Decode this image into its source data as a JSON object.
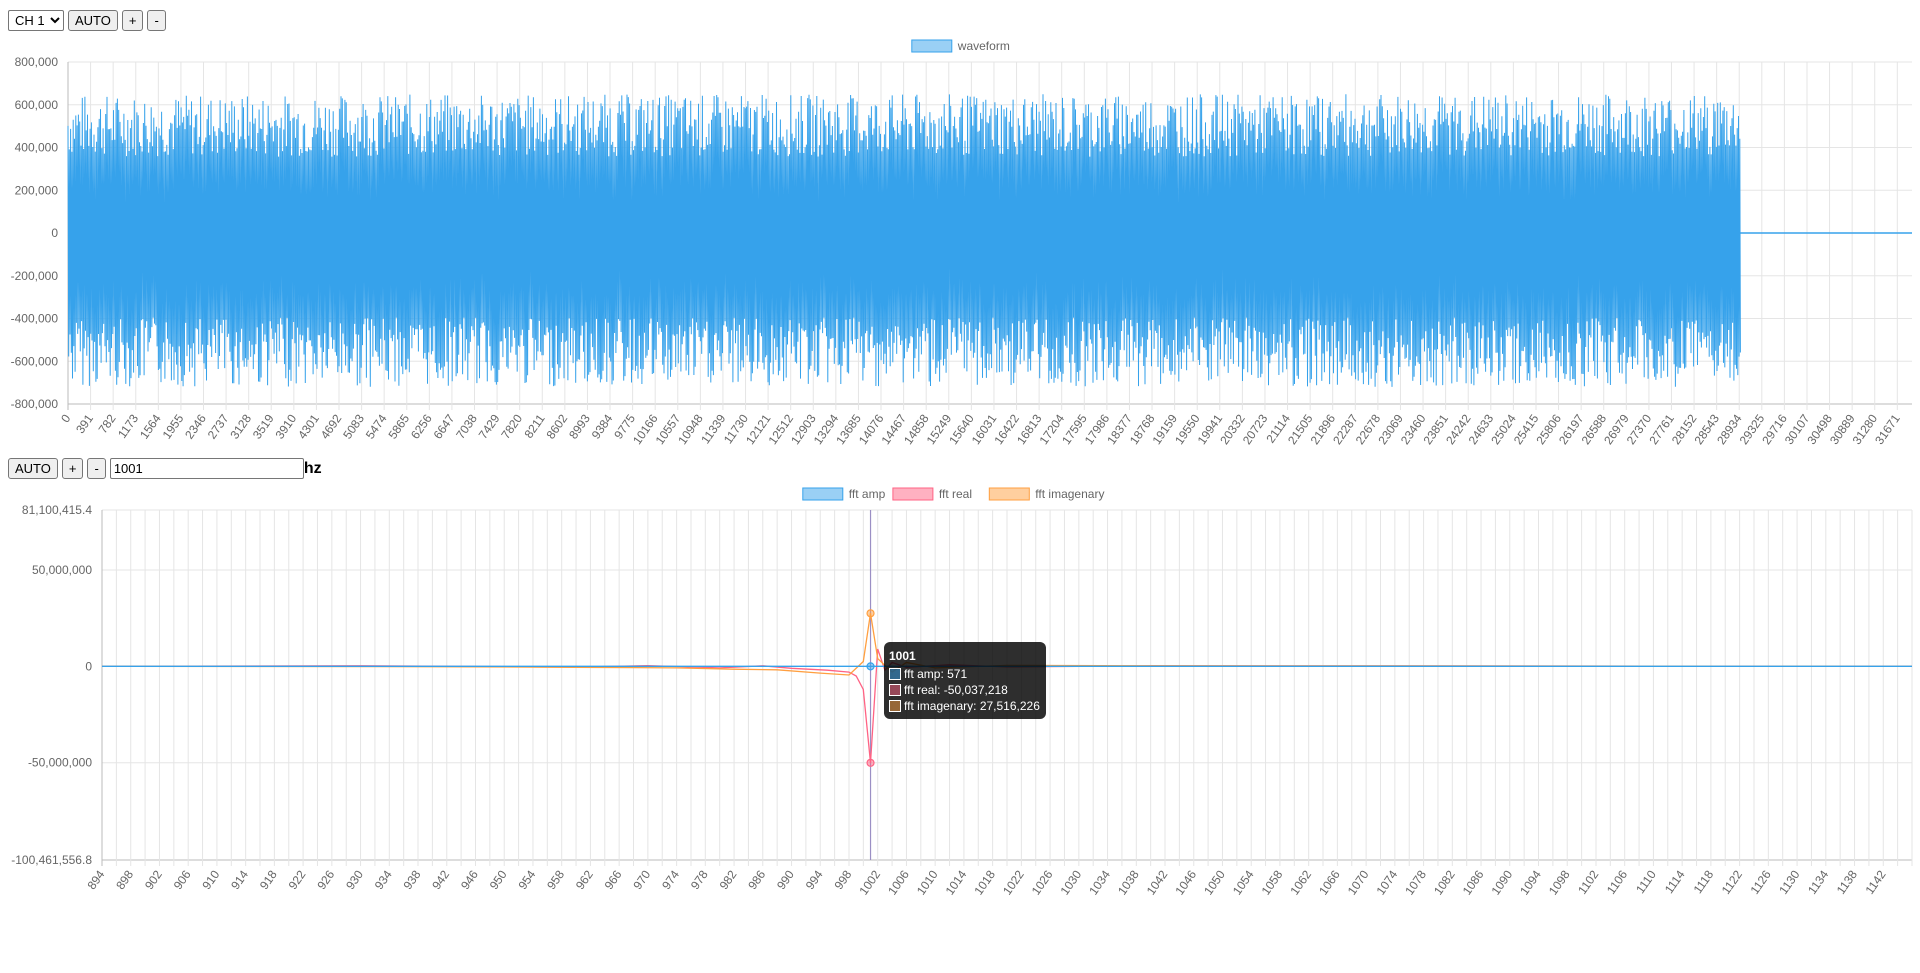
{
  "top_controls": {
    "channel_options": [
      "CH 1"
    ],
    "channel_selected": "CH 1",
    "auto_label": "AUTO",
    "plus_label": "+",
    "minus_label": "-"
  },
  "bottom_controls": {
    "auto_label": "AUTO",
    "plus_label": "+",
    "minus_label": "-",
    "freq_value": "1001",
    "unit_label": "hz"
  },
  "colors": {
    "waveform": "#36a2eb",
    "fft_amp": "#36a2eb",
    "fft_real": "#ff6384",
    "fft_imag": "#ff9f40"
  },
  "chart_data": [
    {
      "type": "line",
      "title": "",
      "legend": [
        "waveform"
      ],
      "legend_position": "top",
      "grid": true,
      "ylim": [
        -800000,
        800000
      ],
      "y_ticks": [
        "800,000",
        "600,000",
        "400,000",
        "200,000",
        "0",
        "-200,000",
        "-400,000",
        "-600,000",
        "-800,000"
      ],
      "x_ticks": [
        "0",
        "391",
        "782",
        "1173",
        "1564",
        "1955",
        "2346",
        "2737",
        "3128",
        "3519",
        "3910",
        "4301",
        "4692",
        "5083",
        "5474",
        "5865",
        "6256",
        "6647",
        "7038",
        "7429",
        "7820",
        "8211",
        "8602",
        "8993",
        "9384",
        "9775",
        "10166",
        "10557",
        "10948",
        "11339",
        "11730",
        "12121",
        "12512",
        "12903",
        "13294",
        "13685",
        "14076",
        "14467",
        "14858",
        "15249",
        "15640",
        "16031",
        "16422",
        "16813",
        "17204",
        "17595",
        "17986",
        "18377",
        "18768",
        "19159",
        "19550",
        "19941",
        "20332",
        "20723",
        "21114",
        "21505",
        "21896",
        "22287",
        "22678",
        "23069",
        "23460",
        "23851",
        "24242",
        "24633",
        "25024",
        "25415",
        "25806",
        "26197",
        "26588",
        "26979",
        "27370",
        "27761",
        "28152",
        "28543",
        "28934",
        "29325",
        "29716",
        "30107",
        "30498",
        "30889",
        "31280",
        "31671"
      ],
      "x_range": [
        0,
        32000
      ],
      "series": [
        {
          "name": "waveform",
          "signal_end_x": 28950,
          "amplitude_max": 650000,
          "amplitude_min": -720000,
          "after_signal_value": 0
        }
      ]
    },
    {
      "type": "line",
      "title": "",
      "legend": [
        "fft amp",
        "fft real",
        "fft imagenary"
      ],
      "legend_position": "top",
      "grid": true,
      "ylim": [
        -100461556.8,
        81100415.4
      ],
      "y_ticks": [
        "81,100,415.4",
        "50,000,000",
        "0",
        "-50,000,000",
        "-100,461,556.8"
      ],
      "y_tick_values": [
        81100415.4,
        50000000,
        0,
        -50000000,
        -100461556.8
      ],
      "x_ticks": [
        "894",
        "898",
        "902",
        "906",
        "910",
        "914",
        "918",
        "922",
        "926",
        "930",
        "934",
        "938",
        "942",
        "946",
        "950",
        "954",
        "958",
        "962",
        "966",
        "970",
        "974",
        "978",
        "982",
        "986",
        "990",
        "994",
        "998",
        "1002",
        "1006",
        "1010",
        "1014",
        "1018",
        "1022",
        "1026",
        "1030",
        "1034",
        "1038",
        "1042",
        "1046",
        "1050",
        "1054",
        "1058",
        "1062",
        "1066",
        "1070",
        "1074",
        "1078",
        "1082",
        "1086",
        "1090",
        "1094",
        "1098",
        "1102",
        "1106",
        "1110",
        "1114",
        "1118",
        "1122",
        "1126",
        "1130",
        "1134",
        "1138",
        "1142"
      ],
      "x_range": [
        894,
        1146
      ],
      "series": [
        {
          "name": "fft amp",
          "points": [
            [
              894,
              0
            ],
            [
              1000,
              0
            ],
            [
              1001,
              571
            ],
            [
              1002,
              0
            ],
            [
              1146,
              0
            ]
          ]
        },
        {
          "name": "fft real",
          "points": [
            [
              894,
              0
            ],
            [
              930,
              300000
            ],
            [
              960,
              -400000
            ],
            [
              970,
              400000
            ],
            [
              980,
              -800000
            ],
            [
              986,
              300000
            ],
            [
              990,
              -1000000
            ],
            [
              995,
              -2000000
            ],
            [
              998,
              -3000000
            ],
            [
              999,
              -5000000
            ],
            [
              1000,
              -12000000
            ],
            [
              1001,
              -50037218
            ],
            [
              1002,
              9000000
            ],
            [
              1003,
              -2000000
            ],
            [
              1004,
              2000000
            ],
            [
              1006,
              -500000
            ],
            [
              1012,
              800000
            ],
            [
              1020,
              -300000
            ],
            [
              1040,
              300000
            ],
            [
              1146,
              0
            ]
          ]
        },
        {
          "name": "fft imagenary",
          "points": [
            [
              894,
              0
            ],
            [
              940,
              -200000
            ],
            [
              960,
              -500000
            ],
            [
              974,
              -800000
            ],
            [
              982,
              -1500000
            ],
            [
              988,
              -1800000
            ],
            [
              994,
              -3500000
            ],
            [
              998,
              -4500000
            ],
            [
              1000,
              2500000
            ],
            [
              1001,
              27516226
            ],
            [
              1002,
              4000000
            ],
            [
              1004,
              -3000000
            ],
            [
              1006,
              2000000
            ],
            [
              1010,
              -800000
            ],
            [
              1020,
              500000
            ],
            [
              1040,
              300000
            ],
            [
              1146,
              0
            ]
          ]
        }
      ],
      "tooltip": {
        "title": "1001",
        "lines": [
          "fft amp: 571",
          "fft real: -50,037,218",
          "fft imagenary: 27,516,226"
        ]
      }
    }
  ]
}
